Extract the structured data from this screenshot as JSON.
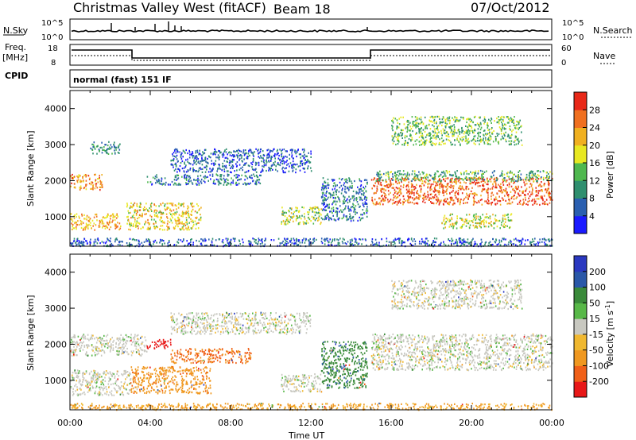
{
  "header": {
    "station": "Christmas Valley West (fitACF)",
    "beam": "Beam 18",
    "date": "07/Oct/2012"
  },
  "top_panels": {
    "nsky_label": "N.Sky",
    "nsky_ticks": [
      "10^5",
      "10^0"
    ],
    "nsearch_label": "N.Search",
    "nsearch_ticks": [
      "10^5",
      "10^0"
    ],
    "freq_label_1": "Freq.",
    "freq_label_2": "[MHz]",
    "freq_ticks": [
      "18",
      "8"
    ],
    "nave_label": "Nave",
    "nave_ticks": [
      "60",
      "0"
    ],
    "cpid_label": "CPID",
    "cpid_text": "normal (fast) 151 IF"
  },
  "chart_data": [
    {
      "type": "heatmap",
      "name_on_chart": "Power",
      "ylabel": "Slant Range [km]",
      "xlabel": "Time UT",
      "x_ticks": [
        "00:00",
        "04:00",
        "08:00",
        "12:00",
        "16:00",
        "20:00",
        "00:00"
      ],
      "y_ticks": [
        "1000",
        "2000",
        "3000",
        "4000"
      ],
      "ylim": [
        180,
        4500
      ],
      "xlim_hours": [
        0,
        24
      ],
      "colorbar": {
        "label": "Power [dB]",
        "ticks": [
          "4",
          "8",
          "12",
          "16",
          "20",
          "24",
          "28"
        ],
        "range": [
          0,
          32
        ],
        "colors": [
          "#1a1aff",
          "#2a5fb0",
          "#2f8f6f",
          "#4fb84f",
          "#e8e822",
          "#f0b020",
          "#f07020",
          "#e82818"
        ]
      },
      "echo_regions": [
        {
          "t0": 0.0,
          "t1": 1.6,
          "r0": 1750,
          "r1": 2200,
          "power": 24
        },
        {
          "t0": 0.0,
          "t1": 2.5,
          "r0": 650,
          "r1": 1100,
          "power": 22
        },
        {
          "t0": 1.0,
          "t1": 2.5,
          "r0": 2750,
          "r1": 3100,
          "power": 10
        },
        {
          "t0": 2.8,
          "t1": 6.5,
          "r0": 650,
          "r1": 1400,
          "power": 20
        },
        {
          "t0": 3.8,
          "t1": 9.5,
          "r0": 1900,
          "r1": 2200,
          "power": 8
        },
        {
          "t0": 5.0,
          "t1": 12.0,
          "r0": 2250,
          "r1": 2900,
          "power": 6
        },
        {
          "t0": 10.5,
          "t1": 12.5,
          "r0": 800,
          "r1": 1300,
          "power": 16
        },
        {
          "t0": 12.5,
          "t1": 14.8,
          "r0": 900,
          "r1": 2100,
          "power": 8
        },
        {
          "t0": 15.0,
          "t1": 24.0,
          "r0": 1350,
          "r1": 2100,
          "power": 27
        },
        {
          "t0": 15.2,
          "t1": 24.0,
          "r0": 2000,
          "r1": 2300,
          "power": 12
        },
        {
          "t0": 16.0,
          "t1": 22.5,
          "r0": 3000,
          "r1": 3800,
          "power": 14
        },
        {
          "t0": 18.5,
          "t1": 22.0,
          "r0": 700,
          "r1": 1100,
          "power": 18
        },
        {
          "t0": 0.0,
          "t1": 24.0,
          "r0": 200,
          "r1": 420,
          "power": 6
        }
      ]
    },
    {
      "type": "heatmap",
      "name_on_chart": "Velocity",
      "ylabel": "Slant Range [km]",
      "xlabel": "Time UT",
      "x_ticks": [
        "00:00",
        "04:00",
        "08:00",
        "12:00",
        "16:00",
        "20:00",
        "00:00"
      ],
      "y_ticks": [
        "1000",
        "2000",
        "3000",
        "4000"
      ],
      "ylim": [
        180,
        4500
      ],
      "xlim_hours": [
        0,
        24
      ],
      "colorbar": {
        "label": "Velocity [m s-1]",
        "label_parts": [
          "Velocity [m s",
          "-1",
          "]"
        ],
        "ticks": [
          "-200",
          "-100",
          "-50",
          "-15",
          "15",
          "50",
          "100",
          "200"
        ],
        "colors": [
          "#e81818",
          "#f06018",
          "#f09820",
          "#f0b830",
          "#c8c8c0",
          "#58b848",
          "#3a8a3a",
          "#2a58a8",
          "#2a38c0"
        ]
      },
      "echo_regions": [
        {
          "t0": 0.0,
          "t1": 3.8,
          "r0": 1700,
          "r1": 2300,
          "velocity": 0
        },
        {
          "t0": 0.0,
          "t1": 3.0,
          "r0": 600,
          "r1": 1300,
          "velocity": 0
        },
        {
          "t0": 3.0,
          "t1": 7.0,
          "r0": 650,
          "r1": 1400,
          "velocity": -60
        },
        {
          "t0": 3.8,
          "t1": 5.0,
          "r0": 1900,
          "r1": 2150,
          "velocity": -200
        },
        {
          "t0": 5.0,
          "t1": 9.0,
          "r0": 1500,
          "r1": 1900,
          "velocity": -80
        },
        {
          "t0": 5.0,
          "t1": 12.0,
          "r0": 2300,
          "r1": 2900,
          "velocity": 0
        },
        {
          "t0": 10.5,
          "t1": 12.5,
          "r0": 700,
          "r1": 1200,
          "velocity": 0
        },
        {
          "t0": 12.5,
          "t1": 14.8,
          "r0": 800,
          "r1": 2100,
          "velocity": 60
        },
        {
          "t0": 15.0,
          "t1": 24.0,
          "r0": 1300,
          "r1": 2300,
          "velocity": 0
        },
        {
          "t0": 16.0,
          "t1": 22.5,
          "r0": 3000,
          "r1": 3800,
          "velocity": 0
        },
        {
          "t0": 0.0,
          "t1": 24.0,
          "r0": 200,
          "r1": 380,
          "velocity": -40
        }
      ]
    }
  ]
}
